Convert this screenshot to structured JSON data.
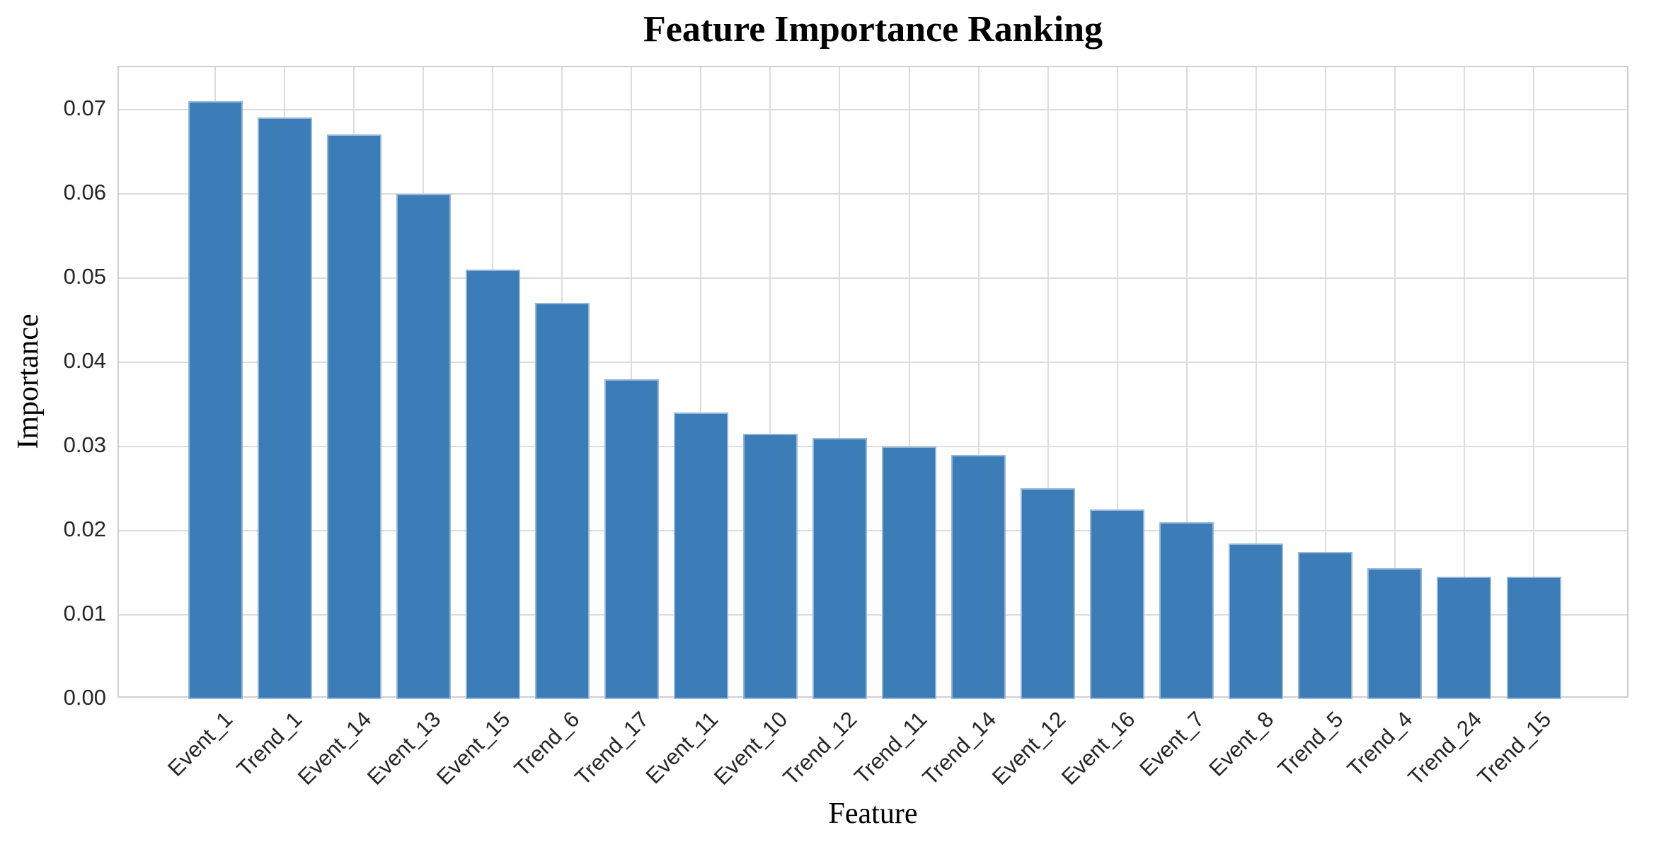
{
  "chart_data": {
    "type": "bar",
    "title": "Feature Importance Ranking",
    "xlabel": "Feature",
    "ylabel": "Importance",
    "categories": [
      "Event_1",
      "Trend_1",
      "Event_14",
      "Event_13",
      "Event_15",
      "Trend_6",
      "Trend_17",
      "Event_11",
      "Event_10",
      "Trend_12",
      "Trend_11",
      "Trend_14",
      "Event_12",
      "Event_16",
      "Event_7",
      "Event_8",
      "Trend_5",
      "Trend_4",
      "Trend_24",
      "Trend_15"
    ],
    "values": [
      0.071,
      0.069,
      0.067,
      0.06,
      0.051,
      0.047,
      0.038,
      0.034,
      0.0315,
      0.031,
      0.03,
      0.029,
      0.025,
      0.0225,
      0.021,
      0.0185,
      0.0175,
      0.0155,
      0.0145,
      0.0145
    ],
    "ylim": [
      0,
      0.075
    ],
    "ytick_labels": [
      "0.00",
      "0.01",
      "0.02",
      "0.03",
      "0.04",
      "0.05",
      "0.06",
      "0.07"
    ],
    "yticks": [
      0.0,
      0.01,
      0.02,
      0.03,
      0.04,
      0.05,
      0.06,
      0.07
    ],
    "x_tick_rotation_deg": 45,
    "grid": "on",
    "legend": "none",
    "bar_color": "#3c7db8",
    "bar_edge_color": "rgba(255,255,255,0.45)",
    "grid_color": "#dcdcdc",
    "spine_color": "#cfcfcf",
    "tick_label_color": "#262626",
    "title_color": "#000000"
  }
}
